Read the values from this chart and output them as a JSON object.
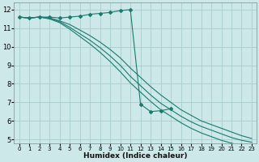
{
  "background_color": "#cce8e8",
  "grid_color": "#aacccc",
  "line_color": "#1a7a6e",
  "xlabel": "Humidex (Indice chaleur)",
  "xlim": [
    -0.5,
    23.5
  ],
  "ylim": [
    4.8,
    12.4
  ],
  "xticks": [
    0,
    1,
    2,
    3,
    4,
    5,
    6,
    7,
    8,
    9,
    10,
    11,
    12,
    13,
    14,
    15,
    16,
    17,
    18,
    19,
    20,
    21,
    22,
    23
  ],
  "yticks": [
    5,
    6,
    7,
    8,
    9,
    10,
    11,
    12
  ],
  "spike_x": [
    0,
    1,
    2,
    3,
    4,
    5,
    6,
    7,
    8,
    9,
    10,
    11,
    12,
    13,
    14,
    15
  ],
  "spike_y": [
    11.6,
    11.55,
    11.6,
    11.6,
    11.55,
    11.6,
    11.65,
    11.75,
    11.8,
    11.85,
    11.95,
    12.0,
    6.9,
    6.5,
    6.55,
    6.65
  ],
  "line2_x": [
    0,
    1,
    2,
    3,
    4,
    5,
    6,
    7,
    8,
    9,
    10,
    11,
    12,
    13,
    14,
    15,
    16,
    17,
    18,
    19,
    20,
    21,
    22,
    23
  ],
  "line2_y": [
    11.6,
    11.55,
    11.6,
    11.55,
    11.4,
    11.2,
    10.9,
    10.6,
    10.25,
    9.85,
    9.4,
    8.85,
    8.35,
    7.85,
    7.4,
    7.0,
    6.6,
    6.3,
    6.0,
    5.8,
    5.6,
    5.4,
    5.2,
    5.05
  ],
  "line3_x": [
    0,
    1,
    2,
    3,
    4,
    5,
    6,
    7,
    8,
    9,
    10,
    11,
    12,
    13,
    14,
    15,
    16,
    17,
    18,
    19,
    20,
    21,
    22,
    23
  ],
  "line3_y": [
    11.6,
    11.55,
    11.6,
    11.55,
    11.35,
    11.05,
    10.7,
    10.35,
    9.95,
    9.5,
    9.0,
    8.4,
    7.9,
    7.4,
    6.95,
    6.6,
    6.25,
    5.95,
    5.7,
    5.5,
    5.3,
    5.1,
    4.95,
    4.85
  ],
  "line4_x": [
    0,
    1,
    2,
    3,
    4,
    5,
    6,
    7,
    8,
    9,
    10,
    11,
    12,
    13,
    14,
    15,
    16,
    17,
    18,
    19,
    20,
    21,
    22,
    23
  ],
  "line4_y": [
    11.6,
    11.55,
    11.6,
    11.5,
    11.3,
    10.95,
    10.55,
    10.15,
    9.7,
    9.2,
    8.65,
    8.05,
    7.55,
    7.05,
    6.6,
    6.25,
    5.9,
    5.6,
    5.35,
    5.15,
    4.95,
    4.8,
    4.65,
    4.55
  ]
}
